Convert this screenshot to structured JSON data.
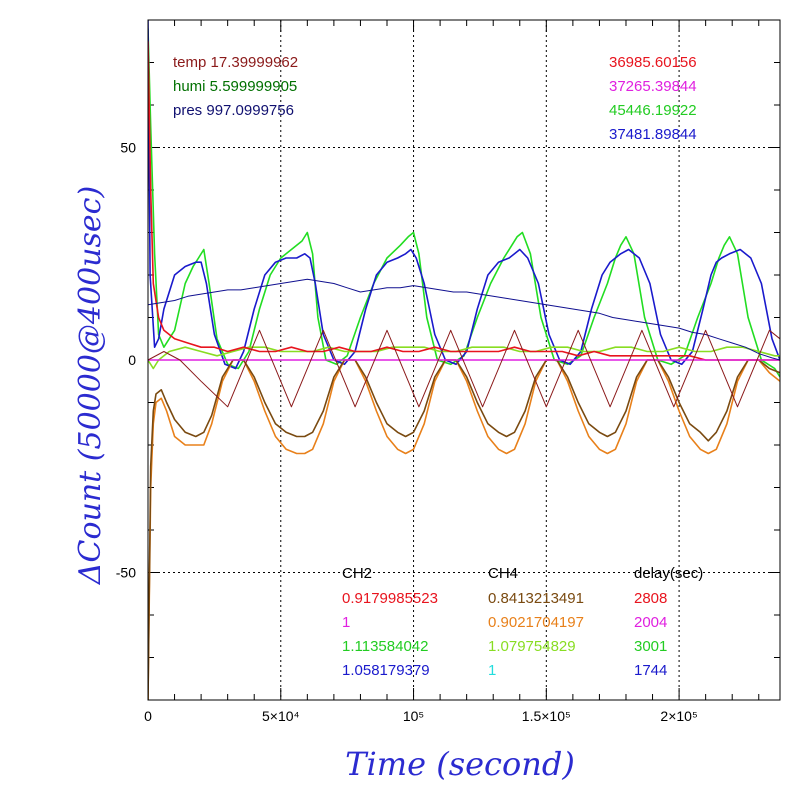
{
  "chart_data": {
    "type": "line",
    "title": "",
    "xlabel": "Time (second)",
    "ylabel": "ΔCount (50000@400usec)",
    "xlim": [
      0,
      238000
    ],
    "ylim": [
      -80,
      80
    ],
    "grid": true,
    "x_ticks": [
      {
        "value": 0,
        "label": "0"
      },
      {
        "value": 50000,
        "label": "5×10⁴"
      },
      {
        "value": 100000,
        "label": "10⁵"
      },
      {
        "value": 150000,
        "label": "1.5×10⁵"
      },
      {
        "value": 200000,
        "label": "2×10⁵"
      }
    ],
    "y_ticks": [
      {
        "value": 50,
        "label": "50"
      },
      {
        "value": 0,
        "label": "0"
      },
      {
        "value": -50,
        "label": "-50"
      }
    ],
    "env_annotations": [
      {
        "text": "temp 17.39999962",
        "color": "#8b1a1a"
      },
      {
        "text": "humi 5.599999905",
        "color": "#007000"
      },
      {
        "text": "pres 997.0999756",
        "color": "#101070"
      }
    ],
    "count_annotations": [
      {
        "text": "36985.60156",
        "color": "#e8141e"
      },
      {
        "text": "37265.39844",
        "color": "#e020e0"
      },
      {
        "text": "45446.19922",
        "color": "#22cc22"
      },
      {
        "text": "37481.89844",
        "color": "#1a1acc"
      }
    ],
    "table": {
      "headers": [
        "CH2",
        "CH4",
        "delay(sec)"
      ],
      "rows": [
        {
          "ch2": "0.9179985523",
          "ch4": "0.8413213491",
          "delay": "2808",
          "c2": "#e8141e",
          "c4": "#7a4a10",
          "cd": "#e8141e"
        },
        {
          "ch2": "1",
          "ch4": "0.9021704197",
          "delay": "2004",
          "c2": "#e020e0",
          "c4": "#e8801a",
          "cd": "#e020e0"
        },
        {
          "ch2": "1.113584042",
          "ch4": "1.079754829",
          "delay": "3001",
          "c2": "#22cc22",
          "c4": "#88dd22",
          "cd": "#22cc22"
        },
        {
          "ch2": "1.058179379",
          "ch4": "1",
          "delay": "1744",
          "c2": "#1a1acc",
          "c4": "#22dddd",
          "cd": "#1a1acc"
        }
      ]
    },
    "series": [
      {
        "color": "#22dd22",
        "x": [
          0,
          1000,
          2500,
          4000,
          6000,
          10000,
          14000,
          17000,
          19000,
          21000,
          23000,
          26000,
          30000,
          34000,
          38000,
          42000,
          46000,
          50000,
          54000,
          58000,
          60000,
          62000,
          64000,
          67000,
          71000,
          75000,
          80000,
          85000,
          90000,
          95000,
          98000,
          100000,
          102000,
          105000,
          109000,
          114000,
          119000,
          124000,
          129000,
          134000,
          137000,
          139000,
          141000,
          144000,
          148000,
          153000,
          158000,
          163000,
          168000,
          173000,
          176000,
          178000,
          180000,
          183000,
          187000,
          192000,
          197000,
          202000,
          207000,
          212000,
          215000,
          217000,
          219000,
          222000,
          226000,
          231000,
          236000,
          238000
        ],
        "y": [
          78,
          55,
          25,
          6,
          3,
          7,
          18,
          22,
          24,
          26,
          18,
          5,
          -1,
          -2,
          2,
          12,
          20,
          24,
          26,
          28,
          30,
          25,
          10,
          0,
          -1,
          1,
          10,
          18,
          24,
          27,
          29,
          30,
          25,
          10,
          0,
          -1,
          1,
          10,
          18,
          24,
          27,
          29,
          30,
          25,
          10,
          0,
          -1,
          1,
          10,
          18,
          24,
          27,
          29,
          25,
          10,
          0,
          -1,
          1,
          10,
          18,
          24,
          27,
          29,
          25,
          10,
          0,
          -2,
          -4
        ]
      },
      {
        "color": "#1a1acc",
        "x": [
          0,
          800,
          2500,
          4000,
          6000,
          10000,
          14000,
          18000,
          20000,
          22000,
          25000,
          29000,
          33000,
          36000,
          40000,
          44000,
          48000,
          52000,
          56000,
          59000,
          61000,
          63000,
          66000,
          70000,
          74000,
          78000,
          82000,
          86000,
          90000,
          94000,
          97000,
          99000,
          101000,
          104000,
          108000,
          112000,
          116000,
          120000,
          124000,
          128000,
          132000,
          136000,
          138000,
          140000,
          143000,
          147000,
          151000,
          155000,
          159000,
          163000,
          167000,
          171000,
          174000,
          176000,
          178000,
          181000,
          185000,
          189000,
          193000,
          197000,
          201000,
          205000,
          209000,
          212000,
          214000,
          216000,
          219000,
          223000,
          227000,
          231000,
          235000,
          238000
        ],
        "y": [
          80,
          20,
          3,
          5,
          12,
          20,
          22,
          23,
          23,
          18,
          6,
          -1,
          -2,
          2,
          12,
          20,
          23,
          24,
          24,
          25,
          24,
          18,
          6,
          0,
          -1,
          2,
          12,
          20,
          23,
          24,
          25,
          26,
          24,
          18,
          6,
          0,
          -1,
          2,
          12,
          20,
          23,
          24,
          25,
          26,
          24,
          18,
          6,
          0,
          -1,
          2,
          12,
          20,
          23,
          24,
          25,
          26,
          24,
          18,
          6,
          0,
          -1,
          2,
          12,
          20,
          23,
          24,
          25,
          26,
          24,
          18,
          5,
          0
        ]
      },
      {
        "color": "#e8801a",
        "x": [
          0,
          1000,
          2000,
          3000,
          5000,
          7000,
          10000,
          14000,
          18000,
          21000,
          24000,
          28000,
          32000,
          36000,
          40000,
          44000,
          48000,
          52000,
          56000,
          59000,
          62000,
          66000,
          70000,
          74000,
          78000,
          82000,
          86000,
          90000,
          94000,
          97000,
          100000,
          104000,
          108000,
          112000,
          116000,
          120000,
          124000,
          128000,
          132000,
          135000,
          138000,
          142000,
          146000,
          150000,
          154000,
          158000,
          162000,
          166000,
          170000,
          173000,
          176000,
          180000,
          184000,
          188000,
          192000,
          196000,
          200000,
          204000,
          208000,
          211000,
          214000,
          218000,
          222000,
          226000,
          230000,
          234000,
          238000
        ],
        "y": [
          -80,
          -30,
          -15,
          -10,
          -9,
          -12,
          -18,
          -20,
          -20,
          -20,
          -15,
          -5,
          0,
          0,
          -5,
          -12,
          -18,
          -21,
          -22,
          -22,
          -21,
          -15,
          -5,
          0,
          0,
          -5,
          -12,
          -18,
          -21,
          -22,
          -21,
          -15,
          -5,
          0,
          0,
          -5,
          -12,
          -18,
          -21,
          -22,
          -21,
          -15,
          -5,
          0,
          0,
          -5,
          -12,
          -18,
          -21,
          -22,
          -21,
          -15,
          -5,
          0,
          0,
          -5,
          -12,
          -18,
          -21,
          -22,
          -21,
          -15,
          -5,
          0,
          0,
          -3,
          -5
        ]
      },
      {
        "color": "#7a4a10",
        "x": [
          0,
          1000,
          2000,
          3000,
          5000,
          7000,
          10000,
          14000,
          18000,
          21000,
          24000,
          28000,
          32000,
          36000,
          40000,
          44000,
          48000,
          52000,
          56000,
          59000,
          62000,
          66000,
          70000,
          74000,
          78000,
          82000,
          86000,
          90000,
          94000,
          97000,
          100000,
          104000,
          108000,
          112000,
          116000,
          120000,
          124000,
          128000,
          132000,
          135000,
          138000,
          142000,
          146000,
          150000,
          154000,
          158000,
          162000,
          166000,
          170000,
          173000,
          176000,
          180000,
          184000,
          188000,
          192000,
          196000,
          200000,
          204000,
          208000,
          211000,
          214000,
          218000,
          222000,
          226000,
          230000,
          234000,
          238000
        ],
        "y": [
          -80,
          -25,
          -12,
          -8,
          -7,
          -10,
          -14,
          -17,
          -18,
          -17,
          -13,
          -4,
          0,
          0,
          -4,
          -10,
          -15,
          -17,
          -18,
          -18,
          -17,
          -12,
          -4,
          0,
          0,
          -4,
          -10,
          -15,
          -17,
          -18,
          -17,
          -12,
          -4,
          0,
          0,
          -4,
          -10,
          -15,
          -17,
          -18,
          -17,
          -12,
          -4,
          0,
          0,
          -4,
          -10,
          -15,
          -17,
          -18,
          -17,
          -12,
          -4,
          0,
          0,
          -4,
          -10,
          -15,
          -17,
          -19,
          -17,
          -12,
          -4,
          0,
          0,
          -2,
          -3
        ]
      },
      {
        "color": "#88dd22",
        "x": [
          0,
          2000,
          4000,
          8000,
          14000,
          20000,
          26000,
          32000,
          38000,
          44000,
          50000,
          56000,
          62000,
          68000,
          74000,
          80000,
          86000,
          92000,
          98000,
          104000,
          110000,
          116000,
          122000,
          128000,
          134000,
          140000,
          146000,
          152000,
          158000,
          164000,
          170000,
          176000,
          182000,
          188000,
          194000,
          200000,
          206000,
          212000,
          218000,
          224000,
          230000,
          236000,
          238000
        ],
        "y": [
          0,
          -2,
          0,
          2,
          3,
          2,
          1,
          2,
          3,
          3,
          2,
          2,
          2,
          3,
          2,
          2,
          2,
          3,
          3,
          3,
          2,
          2,
          3,
          3,
          3,
          2,
          2,
          3,
          3,
          2,
          2,
          3,
          3,
          2,
          2,
          3,
          2,
          2,
          3,
          3,
          2,
          1,
          1
        ]
      },
      {
        "color": "#e8141e",
        "x": [
          0,
          1000,
          2000,
          4000,
          6000,
          10000,
          15000,
          20000,
          25000,
          30000,
          36000,
          42000,
          48000,
          54000,
          60000,
          66000,
          72000,
          78000,
          84000,
          90000,
          96000,
          102000,
          108000,
          114000,
          120000,
          126000,
          132000,
          138000,
          144000,
          150000,
          156000,
          162000,
          168000,
          174000,
          180000,
          186000,
          192000,
          198000,
          204000,
          210000,
          216000,
          222000,
          228000,
          234000,
          238000
        ],
        "y": [
          75,
          40,
          18,
          10,
          7,
          5,
          4,
          3,
          3,
          2,
          3,
          2,
          2,
          3,
          2,
          2,
          3,
          2,
          2,
          3,
          2,
          2,
          3,
          2,
          2,
          2,
          2,
          3,
          2,
          2,
          2,
          1,
          2,
          1,
          1,
          1,
          1,
          1,
          1,
          0,
          0,
          0,
          0,
          0,
          0
        ]
      },
      {
        "color": "#e020e0",
        "x": [
          0,
          238000
        ],
        "y": [
          0,
          0
        ]
      },
      {
        "color": "#101090",
        "x": [
          0,
          5000,
          10000,
          15000,
          20000,
          25000,
          30000,
          35000,
          40000,
          45000,
          50000,
          55000,
          60000,
          65000,
          70000,
          75000,
          80000,
          85000,
          90000,
          95000,
          100000,
          105000,
          110000,
          115000,
          120000,
          125000,
          130000,
          135000,
          140000,
          145000,
          150000,
          155000,
          160000,
          165000,
          170000,
          175000,
          180000,
          185000,
          190000,
          195000,
          200000,
          205000,
          210000,
          215000,
          220000,
          225000,
          230000,
          235000,
          238000
        ],
        "y": [
          13,
          13.5,
          14,
          15,
          15.5,
          16,
          16.5,
          16.5,
          17,
          17.5,
          18,
          18.5,
          19,
          18.5,
          18,
          17,
          16,
          16.5,
          17,
          17,
          17.5,
          17,
          16.5,
          16,
          16,
          15.5,
          15,
          14.5,
          14,
          13.5,
          13,
          12.5,
          12,
          11.5,
          11,
          10,
          9.5,
          9,
          8.5,
          8,
          7.5,
          6.5,
          6,
          5,
          4,
          3,
          1.5,
          0.5,
          0
        ]
      },
      {
        "color": "#8b1a1a",
        "x": [
          0,
          6000,
          12000,
          20000,
          30000,
          42000,
          54000,
          66000,
          78000,
          90000,
          102000,
          114000,
          126000,
          138000,
          150000,
          162000,
          174000,
          186000,
          198000,
          210000,
          222000,
          234000,
          238000
        ],
        "y": [
          0,
          2,
          0,
          -5,
          -11,
          7,
          -11,
          7,
          -11,
          7,
          -11,
          7,
          -11,
          7,
          -11,
          7,
          -11,
          7,
          -11,
          7,
          -11,
          7,
          5
        ]
      }
    ]
  }
}
